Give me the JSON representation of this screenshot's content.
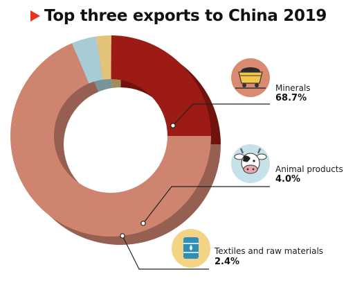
{
  "title": "Top three exports to China 2019",
  "chart_data": {
    "type": "pie",
    "title": "Top three exports to China 2019",
    "categories": [
      "Minerals",
      "Animal products",
      "Textiles and raw materials"
    ],
    "values": [
      68.7,
      4.0,
      2.4
    ],
    "value_labels": [
      "68.7%",
      "4.0%",
      "2.4%"
    ],
    "remaining_share": 24.9,
    "colors": {
      "Minerals": "#cf8470",
      "Animal products": "#a8ccd6",
      "Textiles and raw materials": "#e3c27a",
      "remainder": "#9c1b14"
    },
    "icons": {
      "Minerals": "coal-cart-icon",
      "Animal products": "cow-icon",
      "Textiles and raw materials": "oil-barrel-icon"
    }
  }
}
